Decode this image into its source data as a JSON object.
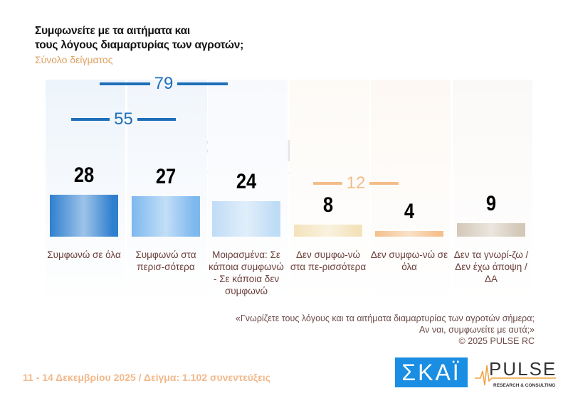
{
  "header": {
    "title_line1": "Συμφωνείτε με τα αιτήματα και",
    "title_line2": "τους λόγους διαμαρτυρίας των αγροτών;",
    "subtitle": "Σύνολο δείγματος"
  },
  "chart_data": {
    "type": "bar",
    "categories": [
      "Συμφωνώ σε όλα",
      "Συμφωνώ στα περισ-σότερα",
      "Μοιρασμένα: Σε κάποια συμφωνώ - Σε κάποια δεν συμφωνώ",
      "Δεν συμφω-νώ στα πε-ρισσότερα",
      "Δεν συμφω-νώ σε όλα",
      "Δεν τα γνωρί-ζω / Δεν έχω άποψη / ΔΑ"
    ],
    "values": [
      28,
      27,
      24,
      8,
      4,
      9
    ],
    "value_labels": [
      "28",
      "27",
      "24",
      "8",
      "4",
      "9"
    ],
    "colors": [
      "#2f7fcf",
      "#7db8ee",
      "#bfdcf6",
      "#f3e3bb",
      "#f4c08c",
      "#d3c8b8"
    ],
    "brackets": [
      {
        "label": "79",
        "covers": [
          0,
          1,
          2
        ],
        "color": "#1f6fb8"
      },
      {
        "label": "55",
        "covers": [
          0,
          1
        ],
        "color": "#1f6fb8"
      },
      {
        "label": "12",
        "covers": [
          3,
          4
        ],
        "color": "#f2bd8a"
      }
    ]
  },
  "note": {
    "line1": "«Γνωρίζετε τους λόγους και τα αιτήματα διαμαρτυρίας των αγροτών σήμερα;",
    "line2": "Αν ναι, συμφωνείτε με αυτά;»",
    "line3": "©  2025  PULSE RC"
  },
  "footer": {
    "text": "11 - 14 Δεκεμβρίου 2025  /  Δείγμα:  1.102 συνεντεύξεις"
  },
  "logos": {
    "skai": "ΣΚΑΪ",
    "pulse": "PULSE",
    "pulse_sub": "RESEARCH & CONSULTING"
  }
}
